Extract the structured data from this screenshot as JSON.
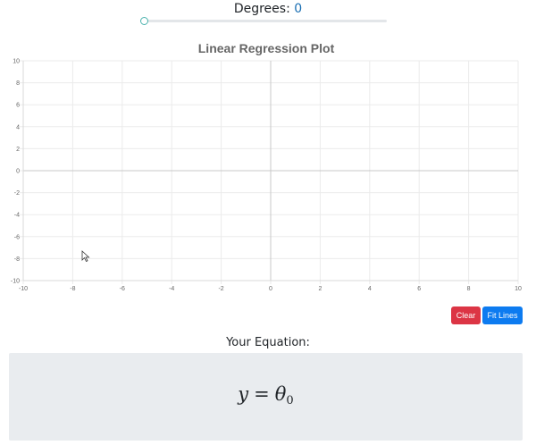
{
  "header": {
    "degrees_label": "Degrees:",
    "degrees_value": "0"
  },
  "slider": {
    "value": 0,
    "min": 0,
    "max": 10,
    "accent_color": "#4cb3ae"
  },
  "chart_data": {
    "type": "scatter",
    "title": "Linear Regression Plot",
    "xlabel": "",
    "ylabel": "",
    "xlim": [
      -10,
      10
    ],
    "ylim": [
      -10,
      10
    ],
    "x_ticks": [
      -10,
      -8,
      -6,
      -4,
      -2,
      0,
      2,
      4,
      6,
      8,
      10
    ],
    "y_ticks": [
      -10,
      -8,
      -6,
      -4,
      -2,
      0,
      2,
      4,
      6,
      8,
      10
    ],
    "grid": true,
    "points": [],
    "series": []
  },
  "buttons": {
    "clear_label": "Clear",
    "fit_label": "Fit Lines",
    "clear_color": "#dc3545",
    "fit_color": "#0d7bf0"
  },
  "equation": {
    "heading": "Your Equation:",
    "lhs": "y",
    "equals": "=",
    "symbol": "θ",
    "subscript": "0"
  }
}
